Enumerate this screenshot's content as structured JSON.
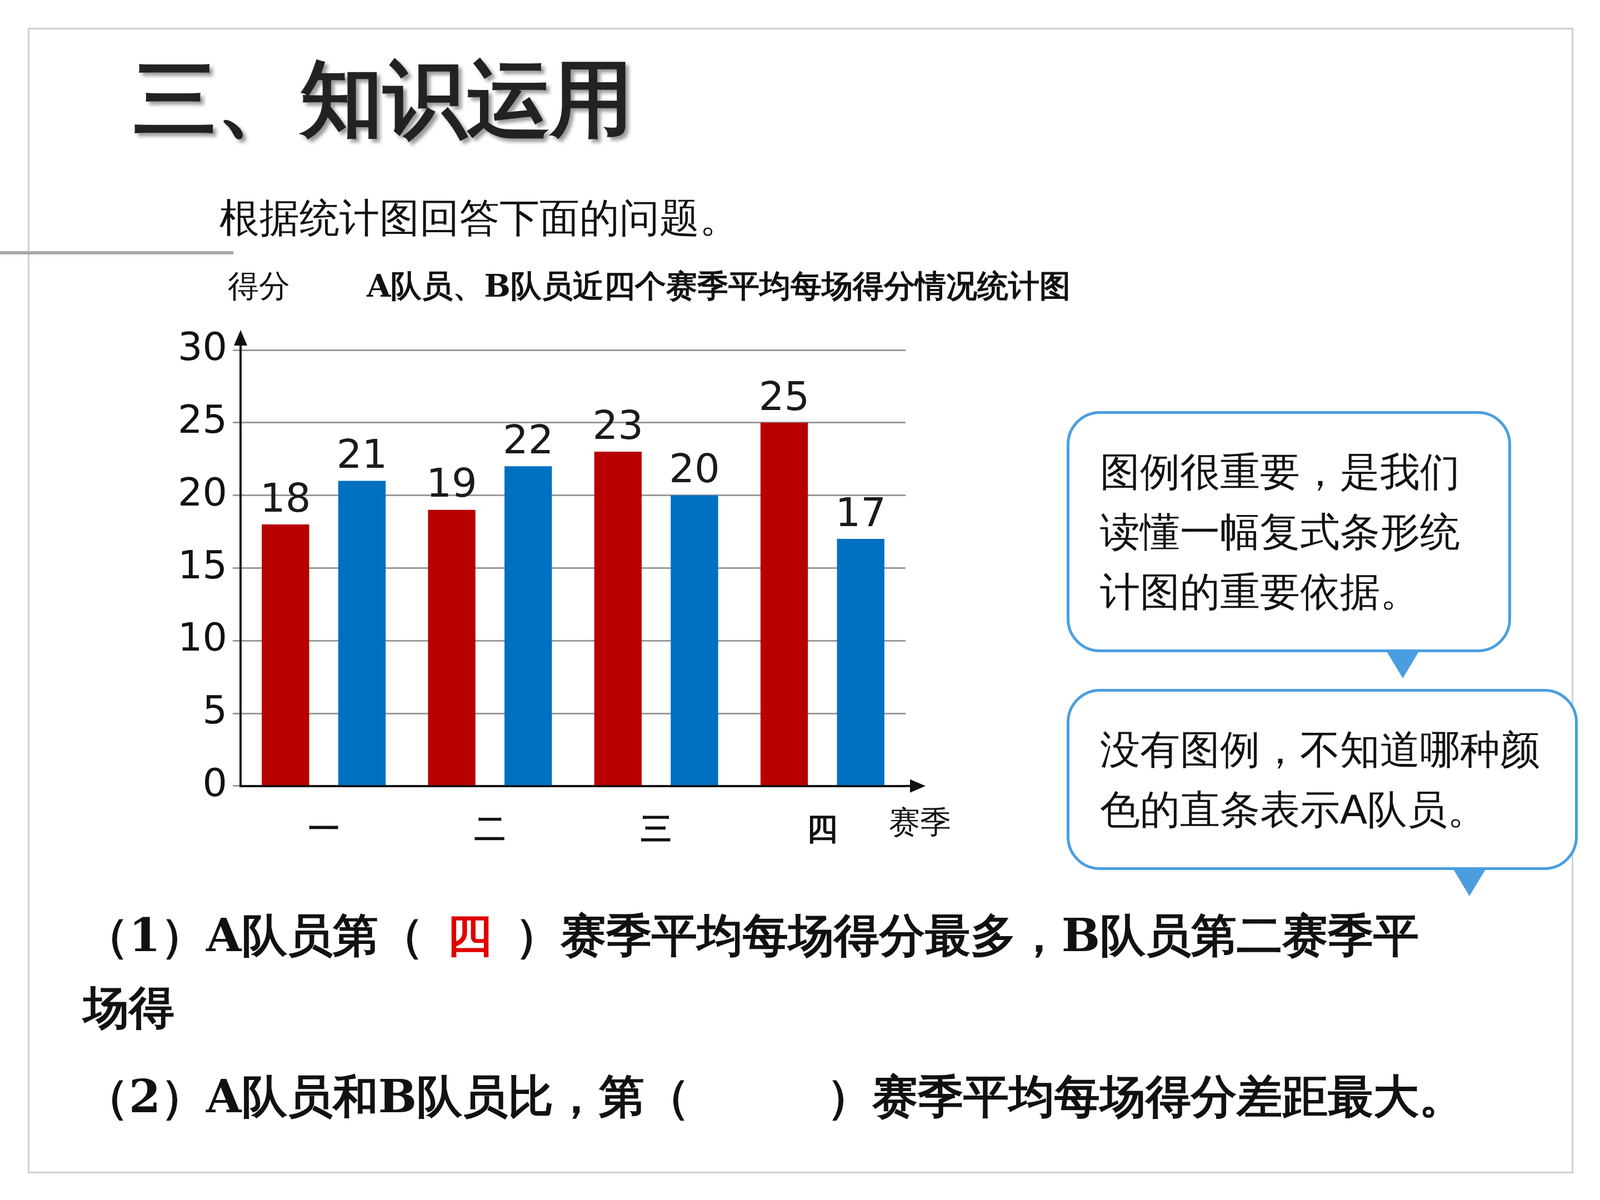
{
  "slide": {
    "heading": "三、知识运用",
    "instruction": "根据统计图回答下面的问题。",
    "bubbles": [
      "图例很重要，是我们读懂一幅复式条形统计图的重要依据。",
      "没有图例，不知道哪种颜色的直条表示A队员。"
    ],
    "questions": [
      {
        "before": "（1）A队员第（",
        "answer": "四",
        "after": "）赛季平均每场得分最多，B队员第二赛季平",
        "continued": "场得"
      },
      {
        "before": "（2）A队员和B队员比，第（　　　）赛季平均每场得分差距最大。"
      }
    ]
  },
  "chart_data": {
    "type": "bar",
    "title": "A队员、B队员近四个赛季平均每场得分情况统计图",
    "ylabel": "得分",
    "xlabel": "赛季",
    "categories": [
      "一",
      "二",
      "三",
      "四"
    ],
    "series": [
      {
        "color": "#b80000",
        "values": [
          18,
          19,
          23,
          25
        ]
      },
      {
        "color": "#0070c0",
        "values": [
          21,
          22,
          20,
          17
        ]
      }
    ],
    "ylim": [
      0,
      30
    ],
    "yticks": [
      0,
      5,
      10,
      15,
      20,
      25,
      30
    ],
    "grid": true,
    "data_labels": true
  }
}
